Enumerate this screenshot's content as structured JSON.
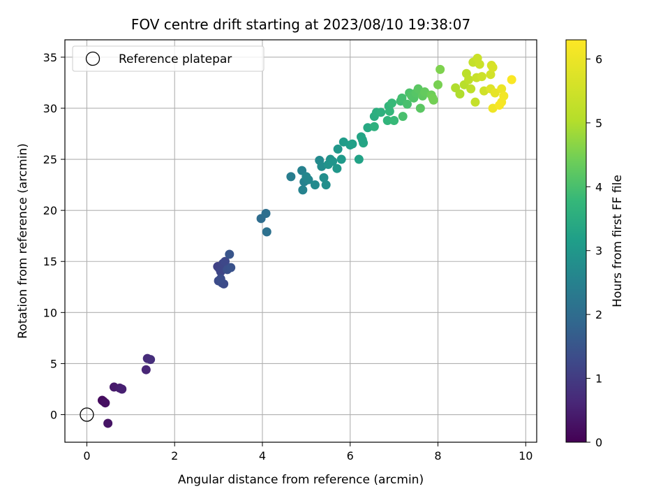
{
  "chart_data": {
    "type": "scatter",
    "title": "FOV centre drift starting at 2023/08/10 19:38:07",
    "xlabel": "Angular distance from reference (arcmin)",
    "ylabel": "Rotation from reference (arcmin)",
    "xlim": [
      -0.5,
      10.25
    ],
    "ylim": [
      -2.7,
      36.7
    ],
    "xticks": [
      0,
      2,
      4,
      6,
      8,
      10
    ],
    "yticks": [
      0,
      5,
      10,
      15,
      20,
      25,
      30,
      35
    ],
    "grid": true,
    "legend": {
      "position": "top-left",
      "entries": [
        "Reference platepar"
      ]
    },
    "reference_point": {
      "x": 0,
      "y": 0
    },
    "colorbar": {
      "label": "Hours from first FF file",
      "range": [
        0,
        6.3
      ],
      "ticks": [
        0,
        1,
        2,
        3,
        4,
        5,
        6
      ],
      "colormap": "viridis"
    },
    "points": [
      [
        0.35,
        1.4,
        0.15
      ],
      [
        0.38,
        1.3,
        0.2
      ],
      [
        0.42,
        1.15,
        0.25
      ],
      [
        0.48,
        -0.85,
        0.3
      ],
      [
        0.62,
        2.7,
        0.4
      ],
      [
        0.75,
        2.6,
        0.45
      ],
      [
        0.8,
        2.5,
        0.5
      ],
      [
        1.35,
        4.4,
        0.6
      ],
      [
        1.38,
        5.5,
        0.7
      ],
      [
        1.45,
        5.4,
        0.75
      ],
      [
        2.98,
        14.5,
        1.1
      ],
      [
        3.02,
        14.3,
        1.15
      ],
      [
        3.05,
        14.0,
        1.2
      ],
      [
        3.1,
        14.8,
        1.2
      ],
      [
        3.15,
        15.0,
        1.25
      ],
      [
        3.0,
        13.1,
        1.3
      ],
      [
        3.08,
        12.9,
        1.35
      ],
      [
        3.12,
        12.8,
        1.3
      ],
      [
        3.2,
        14.2,
        1.4
      ],
      [
        3.28,
        14.4,
        1.45
      ],
      [
        3.25,
        15.7,
        1.5
      ],
      [
        3.05,
        13.3,
        1.35
      ],
      [
        3.97,
        19.2,
        2.0
      ],
      [
        4.08,
        19.7,
        2.05
      ],
      [
        4.1,
        17.9,
        2.1
      ],
      [
        4.65,
        23.3,
        2.4
      ],
      [
        4.9,
        23.9,
        2.5
      ],
      [
        4.95,
        22.8,
        2.5
      ],
      [
        4.92,
        22.0,
        2.55
      ],
      [
        5.0,
        23.3,
        2.6
      ],
      [
        5.05,
        23.0,
        2.6
      ],
      [
        5.2,
        22.5,
        2.7
      ],
      [
        5.3,
        24.9,
        2.7
      ],
      [
        5.35,
        24.3,
        2.75
      ],
      [
        5.4,
        23.2,
        2.8
      ],
      [
        5.45,
        22.5,
        2.8
      ],
      [
        5.5,
        24.5,
        2.9
      ],
      [
        5.55,
        25.0,
        2.9
      ],
      [
        5.6,
        24.8,
        2.95
      ],
      [
        5.7,
        24.1,
        3.0
      ],
      [
        5.72,
        26.0,
        3.0
      ],
      [
        5.8,
        25.0,
        3.05
      ],
      [
        5.85,
        26.7,
        3.1
      ],
      [
        6.0,
        26.4,
        3.15
      ],
      [
        6.05,
        26.5,
        3.2
      ],
      [
        6.2,
        25.0,
        3.25
      ],
      [
        6.25,
        27.2,
        3.3
      ],
      [
        6.3,
        26.6,
        3.35
      ],
      [
        6.28,
        26.9,
        3.3
      ],
      [
        6.4,
        28.1,
        3.4
      ],
      [
        6.55,
        29.2,
        3.5
      ],
      [
        6.6,
        29.6,
        3.55
      ],
      [
        6.55,
        28.2,
        3.6
      ],
      [
        6.7,
        29.6,
        3.6
      ],
      [
        6.88,
        30.2,
        3.7
      ],
      [
        6.85,
        28.8,
        3.7
      ],
      [
        6.9,
        29.7,
        3.75
      ],
      [
        6.95,
        30.5,
        3.8
      ],
      [
        7.0,
        28.8,
        3.8
      ],
      [
        7.15,
        30.7,
        3.9
      ],
      [
        7.18,
        31.0,
        3.95
      ],
      [
        7.2,
        29.2,
        4.0
      ],
      [
        7.3,
        30.4,
        4.0
      ],
      [
        7.35,
        31.5,
        4.05
      ],
      [
        7.4,
        31.2,
        4.1
      ],
      [
        7.45,
        31.0,
        4.1
      ],
      [
        7.5,
        31.5,
        4.15
      ],
      [
        7.55,
        31.9,
        4.2
      ],
      [
        7.6,
        30.0,
        4.2
      ],
      [
        7.65,
        31.2,
        4.25
      ],
      [
        7.7,
        31.6,
        4.3
      ],
      [
        7.85,
        31.3,
        4.4
      ],
      [
        7.9,
        30.8,
        4.45
      ],
      [
        7.88,
        31.0,
        4.45
      ],
      [
        8.0,
        32.3,
        4.5
      ],
      [
        8.05,
        33.8,
        4.55
      ],
      [
        8.4,
        32.0,
        5.0
      ],
      [
        8.5,
        31.4,
        5.0
      ],
      [
        8.6,
        32.3,
        5.1
      ],
      [
        8.65,
        33.4,
        5.15
      ],
      [
        8.7,
        32.8,
        5.2
      ],
      [
        8.75,
        31.9,
        5.2
      ],
      [
        8.8,
        34.5,
        5.3
      ],
      [
        8.85,
        30.6,
        5.3
      ],
      [
        8.88,
        33.0,
        5.35
      ],
      [
        8.9,
        34.9,
        5.4
      ],
      [
        8.95,
        34.3,
        5.4
      ],
      [
        9.0,
        33.1,
        5.45
      ],
      [
        9.05,
        31.7,
        5.5
      ],
      [
        9.2,
        33.3,
        5.55
      ],
      [
        9.22,
        34.2,
        5.6
      ],
      [
        9.25,
        34.0,
        5.65
      ],
      [
        9.2,
        31.9,
        5.75
      ],
      [
        9.3,
        31.5,
        5.9
      ],
      [
        9.45,
        31.9,
        6.0
      ],
      [
        9.25,
        30.0,
        6.05
      ],
      [
        9.5,
        31.2,
        6.1
      ],
      [
        9.45,
        30.6,
        6.15
      ],
      [
        9.4,
        30.3,
        6.2
      ],
      [
        9.68,
        32.8,
        6.25
      ]
    ]
  }
}
